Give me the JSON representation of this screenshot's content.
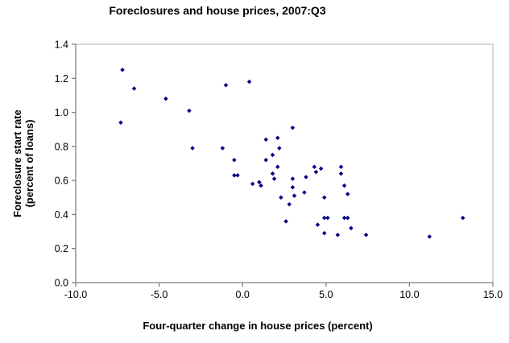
{
  "chart_data": {
    "type": "scatter",
    "title": "Foreclosures and house prices, 2007:Q3",
    "xlabel": "Four-quarter change in house prices (percent)",
    "ylabel_line1": "Foreclosure start rate",
    "ylabel_line2": "(percent of loans)",
    "xlim": [
      -10.0,
      15.0
    ],
    "ylim": [
      0.0,
      1.4
    ],
    "x_ticks": [
      {
        "value": -10.0,
        "label": "-10.0"
      },
      {
        "value": -5.0,
        "label": "-5.0"
      },
      {
        "value": 0.0,
        "label": "0.0"
      },
      {
        "value": 5.0,
        "label": "5.0"
      },
      {
        "value": 10.0,
        "label": "10.0"
      },
      {
        "value": 15.0,
        "label": "15.0"
      }
    ],
    "y_ticks": [
      {
        "value": 0.0,
        "label": "0.0"
      },
      {
        "value": 0.2,
        "label": "0.2"
      },
      {
        "value": 0.4,
        "label": "0.4"
      },
      {
        "value": 0.6,
        "label": "0.6"
      },
      {
        "value": 0.8,
        "label": "0.8"
      },
      {
        "value": 1.0,
        "label": "1.0"
      },
      {
        "value": 1.2,
        "label": "1.2"
      },
      {
        "value": 1.4,
        "label": "1.4"
      }
    ],
    "grid": false,
    "legend": null,
    "marker": {
      "shape": "diamond",
      "color": "#000080",
      "size": 5.5
    },
    "points": [
      [
        -7.3,
        0.94
      ],
      [
        -7.2,
        1.25
      ],
      [
        -6.5,
        1.14
      ],
      [
        -4.6,
        1.08
      ],
      [
        -3.2,
        1.01
      ],
      [
        -3.0,
        0.79
      ],
      [
        -1.2,
        0.79
      ],
      [
        -1.0,
        1.16
      ],
      [
        -0.5,
        0.72
      ],
      [
        -0.5,
        0.63
      ],
      [
        -0.3,
        0.63
      ],
      [
        0.4,
        1.18
      ],
      [
        0.6,
        0.58
      ],
      [
        1.0,
        0.59
      ],
      [
        1.1,
        0.57
      ],
      [
        1.4,
        0.84
      ],
      [
        1.4,
        0.72
      ],
      [
        1.8,
        0.75
      ],
      [
        1.8,
        0.64
      ],
      [
        1.9,
        0.61
      ],
      [
        2.1,
        0.85
      ],
      [
        2.1,
        0.68
      ],
      [
        2.2,
        0.79
      ],
      [
        2.3,
        0.5
      ],
      [
        2.6,
        0.36
      ],
      [
        2.8,
        0.46
      ],
      [
        3.0,
        0.91
      ],
      [
        3.0,
        0.61
      ],
      [
        3.0,
        0.56
      ],
      [
        3.1,
        0.51
      ],
      [
        3.7,
        0.53
      ],
      [
        3.8,
        0.62
      ],
      [
        4.3,
        0.68
      ],
      [
        4.4,
        0.65
      ],
      [
        4.5,
        0.34
      ],
      [
        4.7,
        0.67
      ],
      [
        4.9,
        0.5
      ],
      [
        4.9,
        0.38
      ],
      [
        4.9,
        0.29
      ],
      [
        5.1,
        0.38
      ],
      [
        5.7,
        0.28
      ],
      [
        5.9,
        0.68
      ],
      [
        5.9,
        0.64
      ],
      [
        6.1,
        0.57
      ],
      [
        6.1,
        0.38
      ],
      [
        6.3,
        0.52
      ],
      [
        6.3,
        0.38
      ],
      [
        6.5,
        0.32
      ],
      [
        7.4,
        0.28
      ],
      [
        11.2,
        0.27
      ],
      [
        13.2,
        0.38
      ]
    ]
  },
  "colors": {
    "marker": "#000080",
    "axis_line": "#808080",
    "plot_border": "#c0c0c0",
    "text": "#000000",
    "background": "#ffffff"
  }
}
